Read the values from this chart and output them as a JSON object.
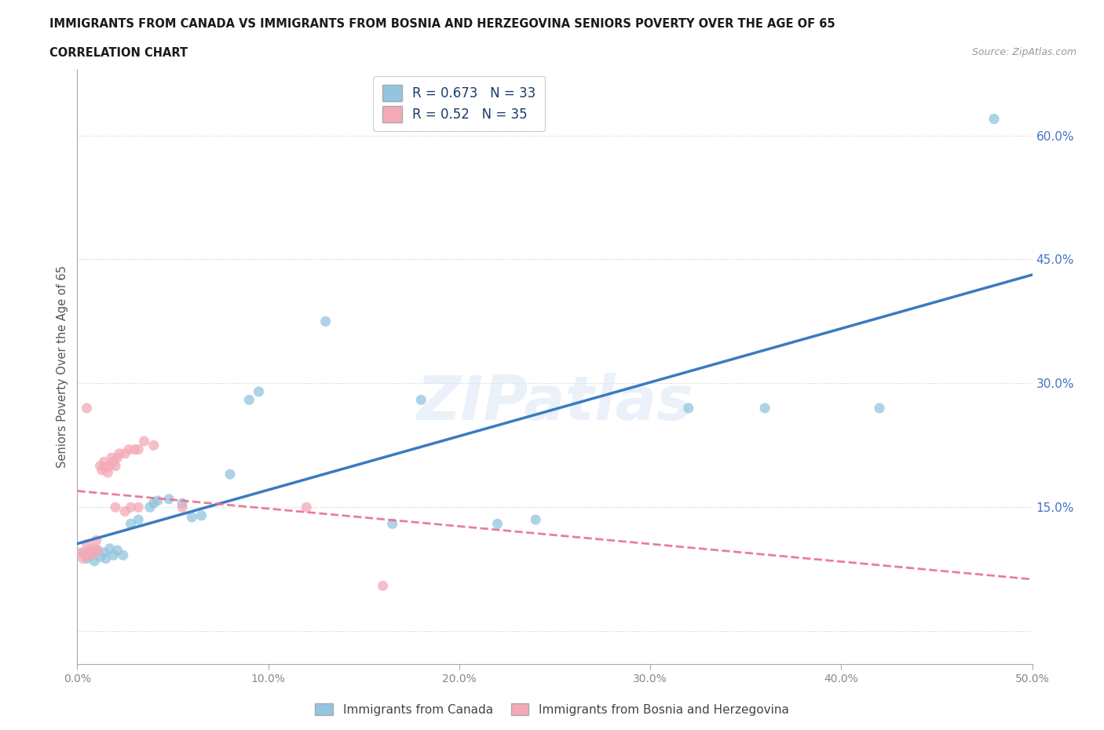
{
  "title_line1": "IMMIGRANTS FROM CANADA VS IMMIGRANTS FROM BOSNIA AND HERZEGOVINA SENIORS POVERTY OVER THE AGE OF 65",
  "title_line2": "CORRELATION CHART",
  "source": "Source: ZipAtlas.com",
  "ylabel": "Seniors Poverty Over the Age of 65",
  "watermark": "ZIPatlas",
  "legend_label1": "Immigrants from Canada",
  "legend_label2": "Immigrants from Bosnia and Herzegovina",
  "R1": 0.673,
  "N1": 33,
  "R2": 0.52,
  "N2": 35,
  "color1": "#92c5de",
  "color2": "#f4a9b8",
  "line1_color": "#3a7bbf",
  "line2_color": "#e87090",
  "xlim": [
    0.0,
    0.5
  ],
  "ylim": [
    -0.04,
    0.68
  ],
  "xtick_pos": [
    0.0,
    0.1,
    0.2,
    0.3,
    0.4,
    0.5
  ],
  "xtick_labels": [
    "0.0%",
    "10.0%",
    "20.0%",
    "30.0%",
    "40.0%",
    "50.0%"
  ],
  "ytick_pos": [
    0.0,
    0.15,
    0.3,
    0.45,
    0.6
  ],
  "ytick_labels": [
    "",
    "15.0%",
    "30.0%",
    "45.0%",
    "60.0%"
  ],
  "background_color": "#ffffff",
  "canada_pts": [
    [
      0.003,
      0.095
    ],
    [
      0.005,
      0.088
    ],
    [
      0.007,
      0.092
    ],
    [
      0.009,
      0.085
    ],
    [
      0.01,
      0.098
    ],
    [
      0.012,
      0.09
    ],
    [
      0.014,
      0.095
    ],
    [
      0.015,
      0.088
    ],
    [
      0.017,
      0.1
    ],
    [
      0.019,
      0.092
    ],
    [
      0.021,
      0.098
    ],
    [
      0.024,
      0.092
    ],
    [
      0.028,
      0.13
    ],
    [
      0.032,
      0.135
    ],
    [
      0.038,
      0.15
    ],
    [
      0.04,
      0.155
    ],
    [
      0.042,
      0.158
    ],
    [
      0.048,
      0.16
    ],
    [
      0.055,
      0.155
    ],
    [
      0.06,
      0.138
    ],
    [
      0.065,
      0.14
    ],
    [
      0.08,
      0.19
    ],
    [
      0.09,
      0.28
    ],
    [
      0.095,
      0.29
    ],
    [
      0.13,
      0.375
    ],
    [
      0.165,
      0.13
    ],
    [
      0.18,
      0.28
    ],
    [
      0.22,
      0.13
    ],
    [
      0.24,
      0.135
    ],
    [
      0.32,
      0.27
    ],
    [
      0.36,
      0.27
    ],
    [
      0.42,
      0.27
    ],
    [
      0.48,
      0.62
    ]
  ],
  "bosnia_pts": [
    [
      0.002,
      0.095
    ],
    [
      0.003,
      0.088
    ],
    [
      0.004,
      0.092
    ],
    [
      0.005,
      0.105
    ],
    [
      0.006,
      0.098
    ],
    [
      0.007,
      0.092
    ],
    [
      0.008,
      0.1
    ],
    [
      0.009,
      0.095
    ],
    [
      0.01,
      0.11
    ],
    [
      0.011,
      0.098
    ],
    [
      0.012,
      0.2
    ],
    [
      0.013,
      0.195
    ],
    [
      0.014,
      0.205
    ],
    [
      0.015,
      0.198
    ],
    [
      0.016,
      0.192
    ],
    [
      0.017,
      0.2
    ],
    [
      0.018,
      0.21
    ],
    [
      0.019,
      0.205
    ],
    [
      0.02,
      0.2
    ],
    [
      0.021,
      0.21
    ],
    [
      0.022,
      0.215
    ],
    [
      0.025,
      0.215
    ],
    [
      0.027,
      0.22
    ],
    [
      0.03,
      0.22
    ],
    [
      0.032,
      0.22
    ],
    [
      0.035,
      0.23
    ],
    [
      0.04,
      0.225
    ],
    [
      0.005,
      0.27
    ],
    [
      0.02,
      0.15
    ],
    [
      0.025,
      0.145
    ],
    [
      0.028,
      0.15
    ],
    [
      0.032,
      0.15
    ],
    [
      0.055,
      0.15
    ],
    [
      0.12,
      0.15
    ],
    [
      0.16,
      0.055
    ]
  ]
}
